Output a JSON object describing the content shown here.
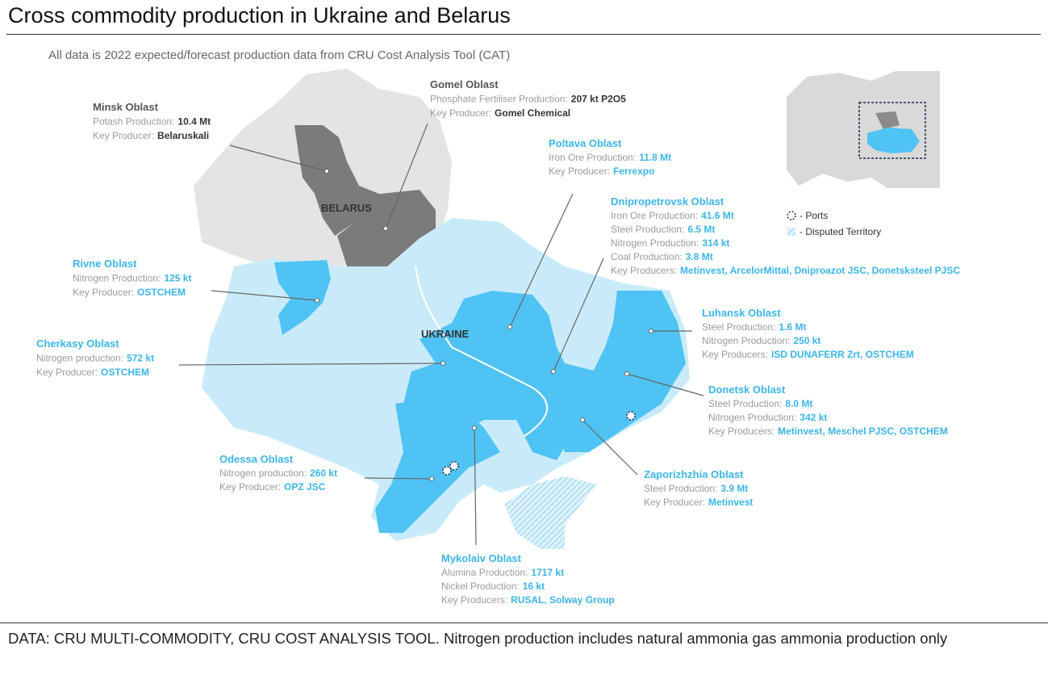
{
  "header": {
    "title": "Cross commodity production in Ukraine and Belarus",
    "subtitle": "All data is 2022 expected/forecast production data from CRU Cost Analysis Tool (CAT)"
  },
  "map_labels": [
    "BELARUS",
    "UKRAINE"
  ],
  "legend": [
    "- Ports",
    "- Disputed Territory"
  ],
  "regions": [
    {
      "name": "Minsk Oblast",
      "country": "Belarus",
      "lines": [
        [
          "Potash Production:",
          "10.4 Mt"
        ],
        [
          "Key Producer:",
          "Belaruskali"
        ]
      ]
    },
    {
      "name": "Gomel Oblast",
      "country": "Belarus",
      "lines": [
        [
          "Phosphate Fertiliser Production:",
          "207 kt P2O5"
        ],
        [
          "Key Producer:",
          "Gomel Chemical"
        ]
      ]
    },
    {
      "name": "Poltava Oblast",
      "country": "Ukraine",
      "lines": [
        [
          "Iron Ore Production:",
          "11.8 Mt"
        ],
        [
          "Key Producer:",
          "Ferrexpo"
        ]
      ]
    },
    {
      "name": "Dnipropetrovsk Oblast",
      "country": "Ukraine",
      "lines": [
        [
          "Iron Ore Production:",
          "41.6 Mt"
        ],
        [
          "Steel Production:",
          "6.5 Mt"
        ],
        [
          "Nitrogen Production:",
          "314 kt"
        ],
        [
          "Coal Production:",
          "3.8 Mt"
        ],
        [
          "Key Producers:",
          "Metinvest, ArcelorMittal, Dniproazot JSC, Donetsksteel PJSC"
        ]
      ]
    },
    {
      "name": "Rivne Oblast",
      "country": "Ukraine",
      "lines": [
        [
          "Nitrogen Production:",
          "125 kt"
        ],
        [
          "Key Producer:",
          "OSTCHEM"
        ]
      ]
    },
    {
      "name": "Cherkasy Oblast",
      "country": "Ukraine",
      "lines": [
        [
          "Nitrogen production:",
          "572 kt"
        ],
        [
          "Key Producer:",
          "OSTCHEM"
        ]
      ]
    },
    {
      "name": "Luhansk Oblast",
      "country": "Ukraine",
      "lines": [
        [
          "Steel Production:",
          "1.6 Mt"
        ],
        [
          "Nitrogen Production:",
          "250 kt"
        ],
        [
          "Key Producers:",
          "ISD DUNAFERR Zrt, OSTCHEM"
        ]
      ]
    },
    {
      "name": "Donetsk Oblast",
      "country": "Ukraine",
      "lines": [
        [
          "Steel Production:",
          "8.0 Mt"
        ],
        [
          "Nitrogen Production:",
          "342 kt"
        ],
        [
          "Key Producers:",
          "Metinvest, Meschel PJSC, OSTCHEM"
        ]
      ]
    },
    {
      "name": "Zaporizhzhia Oblast",
      "country": "Ukraine",
      "lines": [
        [
          "Steel Production:",
          "3.9 Mt"
        ],
        [
          "Key Producer:",
          "Metinvest"
        ]
      ]
    },
    {
      "name": "Odessa Oblast",
      "country": "Ukraine",
      "lines": [
        [
          "Nitrogen production:",
          "260 kt"
        ],
        [
          "Key Producer:",
          "OPZ JSC"
        ]
      ]
    },
    {
      "name": "Mykolaiv Oblast",
      "country": "Ukraine",
      "lines": [
        [
          "Alumina Production:",
          "1717 kt"
        ],
        [
          "Nickel Production:",
          "16 kt"
        ],
        [
          "Key Producers:",
          "RUSAL, Solway Group"
        ]
      ]
    }
  ],
  "footer": "DATA: CRU MULTI-COMMODITY, CRU COST ANALYSIS TOOL. Nitrogen production includes natural ammonia gas ammonia production only"
}
